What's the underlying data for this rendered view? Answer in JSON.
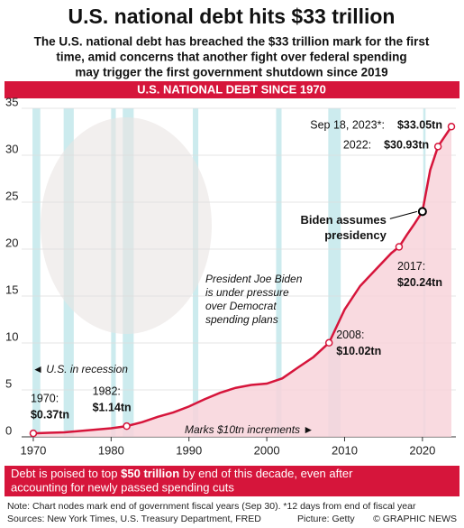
{
  "chart_data": {
    "type": "line",
    "title": "U.S. national debt hits $33 trillion",
    "subtitle": [
      "The U.S. national debt has breached the $33 trillion mark for the first",
      "time, amid concerns that another fight over federal spending",
      "may trigger the first government shutdown since 2019"
    ],
    "banner": "U.S. NATIONAL DEBT SINCE 1970",
    "series": [
      {
        "color": "#d6153b",
        "x": [
          1970,
          1972,
          1974,
          1976,
          1978,
          1980,
          1982,
          1984,
          1986,
          1988,
          1990,
          1992,
          1994,
          1996,
          1998,
          2000,
          2002,
          2004,
          2006,
          2008,
          2010,
          2012,
          2014,
          2016,
          2017,
          2018,
          2019,
          2020,
          2021,
          2022,
          2023.72
        ],
        "values": [
          0.37,
          0.43,
          0.48,
          0.62,
          0.77,
          0.91,
          1.14,
          1.57,
          2.13,
          2.6,
          3.23,
          4.0,
          4.69,
          5.22,
          5.53,
          5.67,
          6.23,
          7.38,
          8.5,
          10.02,
          13.56,
          16.07,
          17.82,
          19.57,
          20.24,
          21.52,
          22.72,
          24,
          28.43,
          30.93,
          33.05
        ]
      }
    ],
    "nodes": [
      {
        "x": 1970,
        "y": 0.37,
        "label": "1970:",
        "value_label": "$0.37tn"
      },
      {
        "x": 1982,
        "y": 1.14,
        "label": "1982:",
        "value_label": "$1.14tn"
      },
      {
        "x": 2008,
        "y": 10.02,
        "label": "2008:",
        "value_label": "$10.02tn"
      },
      {
        "x": 2017,
        "y": 20.24,
        "label": "2017:",
        "value_label": "$20.24tn"
      },
      {
        "x": 2022,
        "y": 30.93,
        "label": "2022:",
        "value_label": "$30.93tn"
      },
      {
        "x": 2023.72,
        "y": 33.05,
        "label": "Sep 18, 2023*:",
        "value_label": "$33.05tn"
      }
    ],
    "biden": {
      "x": 2020,
      "y": 24,
      "lines": [
        "Biden assumes",
        "presidency"
      ]
    },
    "recessions": [
      [
        1969.9,
        1970.9
      ],
      [
        1973.9,
        1975.2
      ],
      [
        1980,
        1980.6
      ],
      [
        1981.5,
        1982.9
      ],
      [
        1990.5,
        1991.2
      ],
      [
        2001.2,
        2001.9
      ],
      [
        2007.9,
        2009.5
      ],
      [
        2020.1,
        2020.4
      ]
    ],
    "recession_label": "◄ U.S. in recession",
    "increments_label": "Marks $10tn increments ►",
    "pressure_note": [
      "President Joe Biden",
      "is under pressure",
      "over Democrat",
      "spending plans"
    ],
    "xlim": [
      1968.5,
      2024.3
    ],
    "xticks": [
      1970,
      1980,
      1990,
      2000,
      2010,
      2020
    ],
    "ylim": [
      0,
      35
    ],
    "yticks": [
      0,
      5,
      10,
      15,
      20,
      25,
      30,
      35
    ],
    "grid": true,
    "box_text": [
      "Debt is poised to top ",
      "$50 trillion",
      " by end of this decade, even after",
      "accounting for newly passed spending cuts"
    ],
    "notes": [
      "Note: Chart nodes mark end of government fiscal years (Sep 30). *12 days from end of fiscal year",
      "Sources: New York Times, U.S. Treasury Department, FRED"
    ],
    "credit": "Picture: Getty",
    "copyright": "© GRAPHIC NEWS"
  }
}
